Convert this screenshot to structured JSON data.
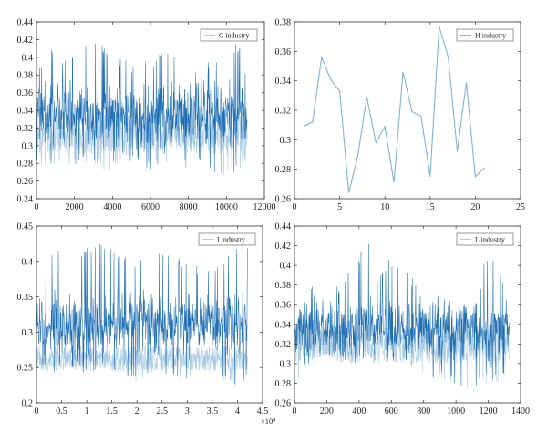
{
  "chart_data": [
    {
      "type": "line",
      "title": "",
      "xlabel": "",
      "ylabel": "",
      "legend": "C industry",
      "legend_position": "top-right",
      "color": "#1f6fb4",
      "color_light": "#a9cbe3",
      "xlim": [
        0,
        12000
      ],
      "ylim": [
        0.24,
        0.44
      ],
      "xticks": [
        0,
        2000,
        4000,
        6000,
        8000,
        10000,
        12000
      ],
      "yticks": [
        0.24,
        0.26,
        0.28,
        0.3,
        0.32,
        0.34,
        0.36,
        0.38,
        0.4,
        0.42,
        0.44
      ],
      "xtick_labels": [
        "0",
        "2000",
        "4000",
        "6000",
        "8000",
        "10000",
        "12000"
      ],
      "ytick_labels": [
        "0.24",
        "0.26",
        "0.28",
        "0.3",
        "0.32",
        "0.34",
        "0.36",
        "0.38",
        "0.4",
        "0.42",
        "0.44"
      ],
      "dense": true,
      "n_points": 11100,
      "envelope_x": [
        0,
        300,
        800,
        1500,
        2200,
        3000,
        3800,
        4500,
        5200,
        6000,
        6800,
        7500,
        8200,
        9000,
        9800,
        10500,
        11100
      ],
      "envelope_upper": [
        0.4,
        0.39,
        0.41,
        0.4,
        0.41,
        0.42,
        0.41,
        0.4,
        0.39,
        0.4,
        0.41,
        0.4,
        0.39,
        0.4,
        0.39,
        0.42,
        0.4
      ],
      "envelope_lower": [
        0.28,
        0.27,
        0.28,
        0.27,
        0.28,
        0.28,
        0.27,
        0.28,
        0.28,
        0.27,
        0.28,
        0.27,
        0.28,
        0.27,
        0.26,
        0.27,
        0.28
      ],
      "center": 0.335,
      "spread": 0.025,
      "light_band": [
        0.29,
        0.34
      ]
    },
    {
      "type": "line",
      "title": "",
      "xlabel": "",
      "ylabel": "",
      "legend": "H industry",
      "legend_position": "top-right",
      "color": "#7fb2d6",
      "xlim": [
        0,
        25
      ],
      "ylim": [
        0.26,
        0.38
      ],
      "xticks": [
        0,
        5,
        10,
        15,
        20,
        25
      ],
      "yticks": [
        0.26,
        0.28,
        0.3,
        0.32,
        0.34,
        0.36,
        0.38
      ],
      "xtick_labels": [
        "0",
        "5",
        "10",
        "15",
        "20",
        "25"
      ],
      "ytick_labels": [
        "0.26",
        "0.28",
        "0.3",
        "0.32",
        "0.34",
        "0.36",
        "0.38"
      ],
      "x": [
        1,
        2,
        3,
        4,
        5,
        6,
        7,
        8,
        9,
        10,
        11,
        12,
        13,
        14,
        15,
        16,
        17,
        18,
        19,
        20,
        21
      ],
      "y": [
        0.309,
        0.312,
        0.356,
        0.341,
        0.333,
        0.264,
        0.289,
        0.329,
        0.298,
        0.309,
        0.271,
        0.346,
        0.319,
        0.316,
        0.275,
        0.377,
        0.356,
        0.292,
        0.339,
        0.275,
        0.281
      ]
    },
    {
      "type": "line",
      "title": "",
      "xlabel": "",
      "ylabel": "",
      "legend": "I industry",
      "legend_position": "top-right",
      "color": "#1f6fb4",
      "color_light": "#a9cbe3",
      "xlim": [
        0,
        4.5
      ],
      "ylim": [
        0.2,
        0.45
      ],
      "x_multiplier": "×10⁴",
      "xticks": [
        0,
        0.5,
        1,
        1.5,
        2,
        2.5,
        3,
        3.5,
        4,
        4.5
      ],
      "yticks": [
        0.2,
        0.25,
        0.3,
        0.35,
        0.4,
        0.45
      ],
      "xtick_labels": [
        "0",
        "0.5",
        "1",
        "1.5",
        "2",
        "2.5",
        "3",
        "3.5",
        "4",
        "4.5"
      ],
      "ytick_labels": [
        "0.2",
        "0.25",
        "0.3",
        "0.35",
        "0.4",
        "0.45"
      ],
      "dense": true,
      "n_points": 42000,
      "envelope_x": [
        0,
        0.3,
        0.7,
        1.0,
        1.3,
        1.7,
        2.0,
        2.3,
        2.7,
        3.0,
        3.3,
        3.7,
        4.0,
        4.2
      ],
      "envelope_upper": [
        0.41,
        0.42,
        0.41,
        0.42,
        0.43,
        0.41,
        0.4,
        0.42,
        0.41,
        0.4,
        0.39,
        0.4,
        0.42,
        0.43
      ],
      "envelope_lower": [
        0.25,
        0.24,
        0.25,
        0.24,
        0.25,
        0.24,
        0.23,
        0.24,
        0.24,
        0.23,
        0.24,
        0.23,
        0.22,
        0.23
      ],
      "center": 0.31,
      "spread": 0.03,
      "light_band": [
        0.245,
        0.28
      ]
    },
    {
      "type": "line",
      "title": "",
      "xlabel": "",
      "ylabel": "",
      "legend": "L industry",
      "legend_position": "top-right",
      "color": "#1f6fb4",
      "color_light": "#a9cbe3",
      "xlim": [
        0,
        1400
      ],
      "ylim": [
        0.26,
        0.44
      ],
      "xticks": [
        0,
        200,
        400,
        600,
        800,
        1000,
        1200,
        1400
      ],
      "yticks": [
        0.26,
        0.28,
        0.3,
        0.32,
        0.34,
        0.36,
        0.38,
        0.4,
        0.42,
        0.44
      ],
      "xtick_labels": [
        "0",
        "200",
        "400",
        "600",
        "800",
        "1000",
        "1200",
        "1400"
      ],
      "ytick_labels": [
        "0.26",
        "0.28",
        "0.3",
        "0.32",
        "0.34",
        "0.36",
        "0.38",
        "0.4",
        "0.42",
        "0.44"
      ],
      "dense": true,
      "n_points": 1330,
      "envelope_x": [
        0,
        50,
        100,
        200,
        300,
        400,
        450,
        500,
        600,
        700,
        800,
        900,
        1000,
        1100,
        1200,
        1300,
        1330
      ],
      "envelope_upper": [
        0.33,
        0.37,
        0.38,
        0.37,
        0.39,
        0.41,
        0.43,
        0.39,
        0.41,
        0.4,
        0.36,
        0.37,
        0.37,
        0.35,
        0.42,
        0.38,
        0.35
      ],
      "envelope_lower": [
        0.27,
        0.29,
        0.3,
        0.31,
        0.3,
        0.3,
        0.31,
        0.29,
        0.3,
        0.3,
        0.29,
        0.28,
        0.28,
        0.27,
        0.28,
        0.28,
        0.29
      ],
      "center": 0.335,
      "spread": 0.02,
      "light_band": [
        0.3,
        0.34
      ]
    }
  ]
}
